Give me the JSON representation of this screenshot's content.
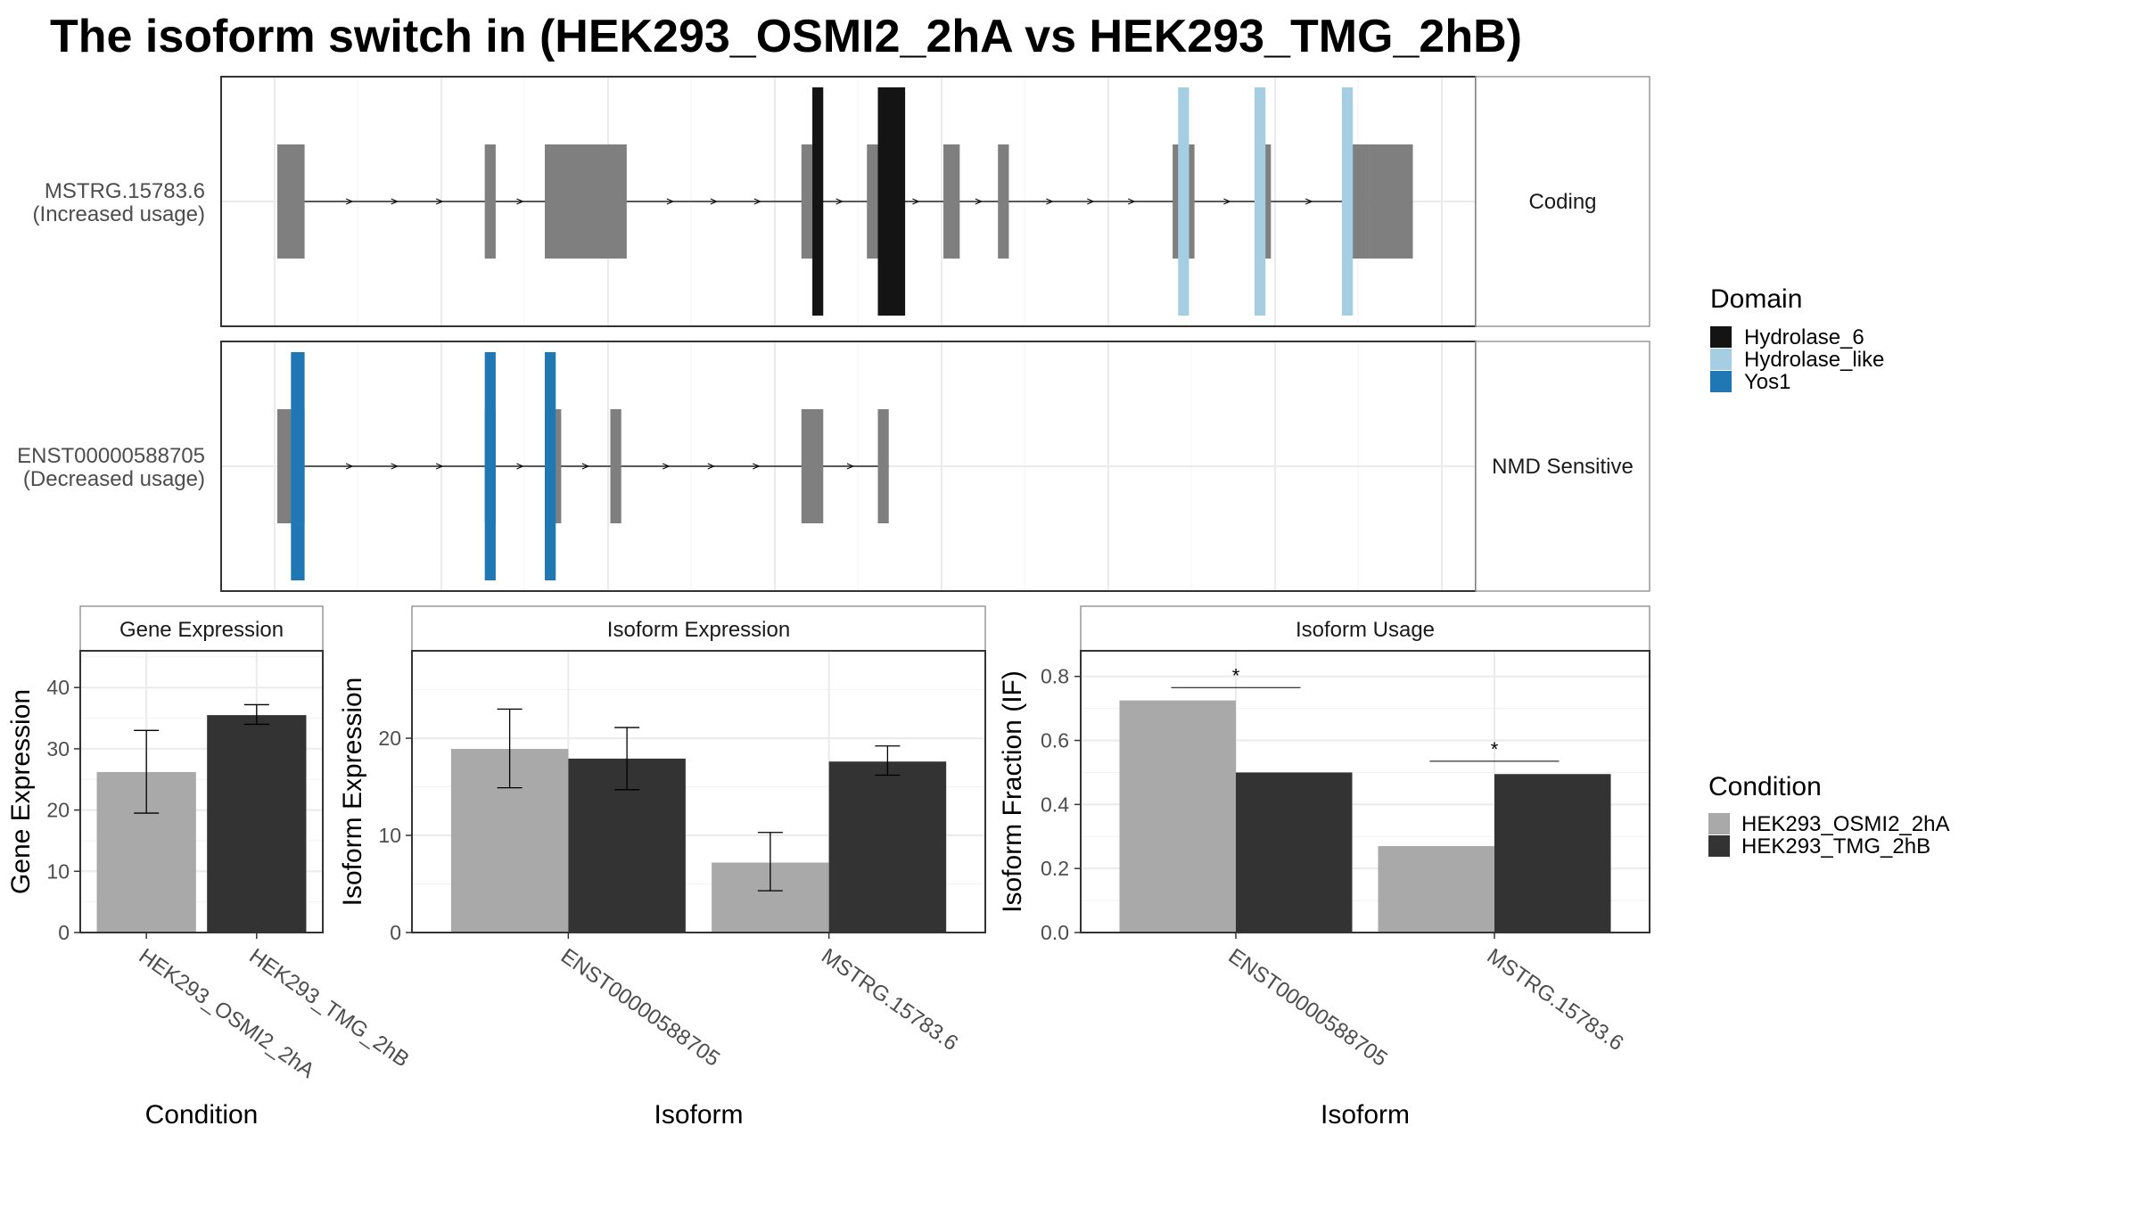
{
  "title": "The isoform switch in  (HEK293_OSMI2_2hA vs HEK293_TMG_2hB)",
  "colors": {
    "exon": "#7f7f7f",
    "Hydrolase_6": "#141414",
    "Hydrolase_like": "#a6cee3",
    "Yos1": "#1f78b4",
    "HEK293_OSMI2_2hA": "#a9a9a9",
    "HEK293_TMG_2hB": "#333333"
  },
  "transcripts": [
    {
      "name": "MSTRG.15783.6",
      "usage": "(Increased usage)",
      "strip": "Coding",
      "exons": [
        [
          0.0,
          0.05
        ],
        [
          0.38,
          0.4
        ],
        [
          0.49,
          0.64
        ],
        [
          0.96,
          0.98
        ],
        [
          1.08,
          1.12
        ],
        [
          1.22,
          1.25
        ],
        [
          1.32,
          1.34
        ],
        [
          1.64,
          1.68
        ],
        [
          1.8,
          1.82
        ],
        [
          1.96,
          2.0
        ],
        [
          2.0,
          2.08
        ]
      ],
      "domains": [
        {
          "name": "Hydrolase_6",
          "start": 0.98,
          "end": 1.0
        },
        {
          "name": "Hydrolase_6",
          "start": 1.1,
          "end": 1.15
        },
        {
          "name": "Hydrolase_like",
          "start": 1.65,
          "end": 1.67
        },
        {
          "name": "Hydrolase_like",
          "start": 1.79,
          "end": 1.81
        },
        {
          "name": "Hydrolase_like",
          "start": 1.95,
          "end": 1.97
        }
      ]
    },
    {
      "name": "ENST00000588705",
      "usage": "(Decreased usage)",
      "strip": "NMD Sensitive",
      "exons": [
        [
          0.0,
          0.05
        ],
        [
          0.38,
          0.4
        ],
        [
          0.49,
          0.52
        ],
        [
          0.61,
          0.63
        ],
        [
          0.96,
          1.0
        ],
        [
          1.1,
          1.12
        ]
      ],
      "domains": [
        {
          "name": "Yos1",
          "start": 0.025,
          "end": 0.05
        },
        {
          "name": "Yos1",
          "start": 0.38,
          "end": 0.4
        },
        {
          "name": "Yos1",
          "start": 0.49,
          "end": 0.51
        }
      ]
    }
  ],
  "legend_domain": {
    "title": "Domain",
    "items": [
      "Hydrolase_6",
      "Hydrolase_like",
      "Yos1"
    ]
  },
  "legend_condition": {
    "title": "Condition",
    "items": [
      "HEK293_OSMI2_2hA",
      "HEK293_TMG_2hB"
    ]
  },
  "chart_data": [
    {
      "type": "bar",
      "title": "Gene Expression",
      "xlabel": "Condition",
      "ylabel": "Gene Expression",
      "ylim": [
        0,
        46
      ],
      "yticks": [
        0,
        10,
        20,
        30,
        40
      ],
      "categories": [
        "HEK293_OSMI2_2hA",
        "HEK293_TMG_2hB"
      ],
      "values": [
        26.2,
        35.5
      ],
      "errors": [
        [
          19.5,
          33.0
        ],
        [
          34.0,
          37.2
        ]
      ]
    },
    {
      "type": "bar",
      "title": "Isoform Expression",
      "xlabel": "Isoform",
      "ylabel": "Isoform Expression",
      "ylim": [
        0,
        29
      ],
      "yticks": [
        0,
        10,
        20
      ],
      "categories": [
        "ENST00000588705",
        "MSTRG.15783.6"
      ],
      "series": [
        {
          "name": "HEK293_OSMI2_2hA",
          "values": [
            18.9,
            7.2
          ],
          "errors": [
            [
              14.9,
              23.0
            ],
            [
              4.3,
              10.3
            ]
          ]
        },
        {
          "name": "HEK293_TMG_2hB",
          "values": [
            17.9,
            17.6
          ],
          "errors": [
            [
              14.7,
              21.1
            ],
            [
              16.2,
              19.2
            ]
          ]
        }
      ]
    },
    {
      "type": "bar",
      "title": "Isoform Usage",
      "xlabel": "Isoform",
      "ylabel": "Isoform Fraction (IF)",
      "ylim": [
        0,
        0.88
      ],
      "yticks": [
        0.0,
        0.2,
        0.4,
        0.6,
        0.8
      ],
      "categories": [
        "ENST00000588705",
        "MSTRG.15783.6"
      ],
      "series": [
        {
          "name": "HEK293_OSMI2_2hA",
          "values": [
            0.725,
            0.27
          ]
        },
        {
          "name": "HEK293_TMG_2hB",
          "values": [
            0.5,
            0.495
          ]
        }
      ],
      "significance": [
        {
          "category": "ENST00000588705",
          "label": "*",
          "y": 0.765
        },
        {
          "category": "MSTRG.15783.6",
          "label": "*",
          "y": 0.535
        }
      ]
    }
  ]
}
